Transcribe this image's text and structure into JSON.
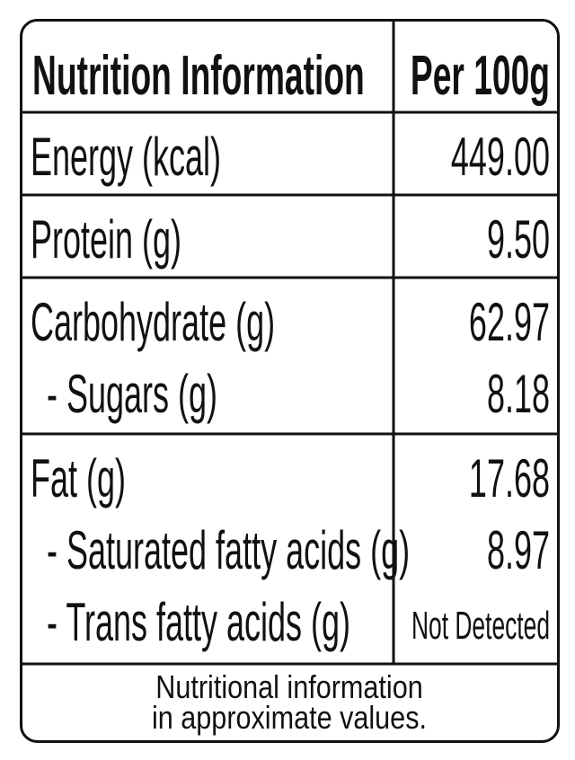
{
  "header": [
    "Nutrition Information",
    "Per 100g"
  ],
  "groups": [
    {
      "rows": [
        [
          "Energy (kcal)",
          "449.00"
        ]
      ]
    },
    {
      "rows": [
        [
          "Protein (g)",
          "9.50"
        ]
      ]
    },
    {
      "rows": [
        [
          "Carbohydrate (g)",
          "62.97"
        ],
        [
          "- Sugars (g)",
          "8.18"
        ]
      ]
    },
    {
      "rows": [
        [
          "Fat (g)",
          "17.68"
        ],
        [
          "- Saturated fatty acids (g)",
          "8.97"
        ],
        [
          "- Trans fatty acids (g)",
          "Not Detected"
        ]
      ]
    }
  ],
  "footer": [
    "Nutritional information",
    "in approximate values."
  ]
}
